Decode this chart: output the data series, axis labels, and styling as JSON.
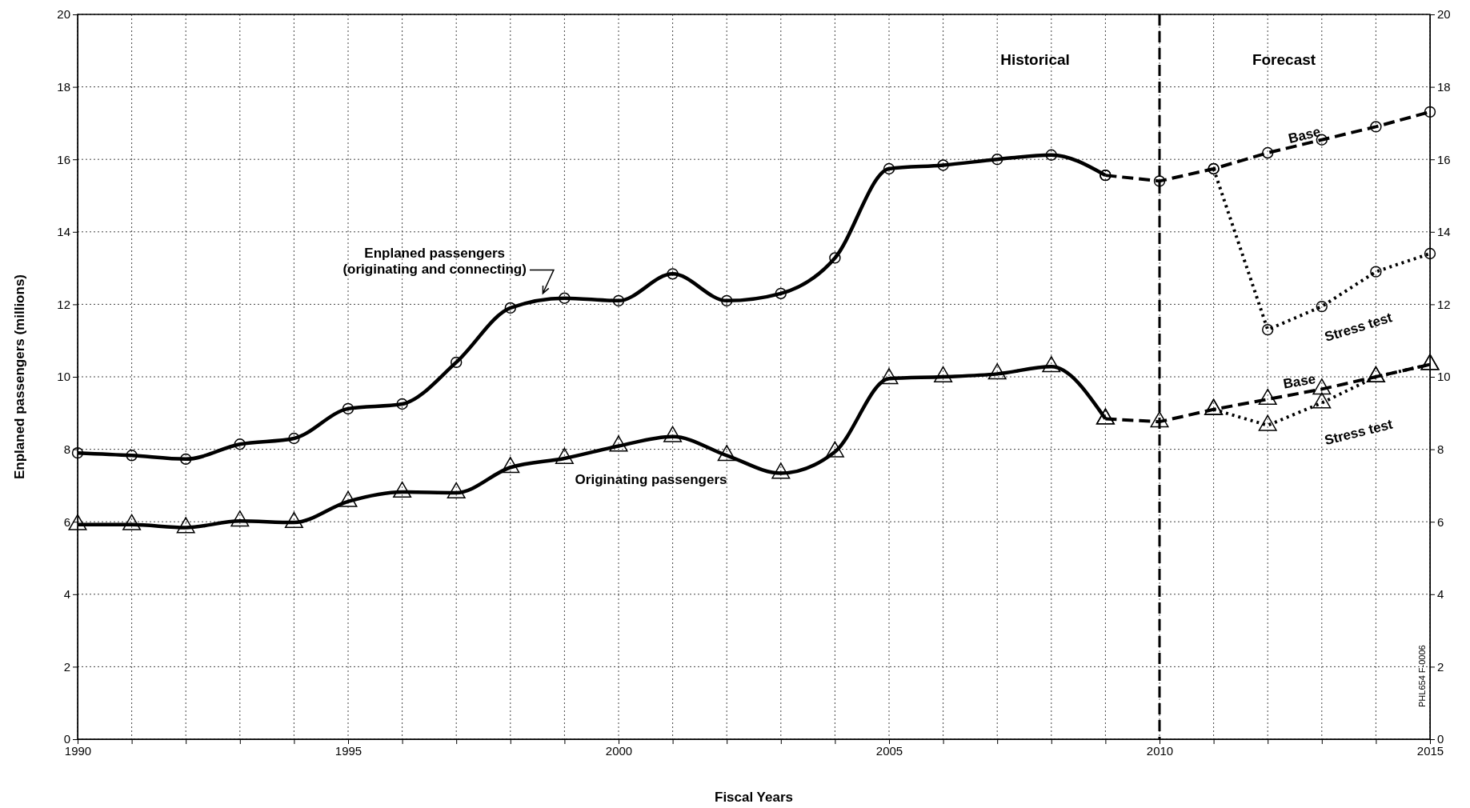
{
  "chart_data": {
    "type": "line",
    "xlabel": "Fiscal Years",
    "ylabel": "Enplaned passengers (millions)",
    "xlim": [
      1990,
      2015
    ],
    "xticks": [
      1990,
      {
        "value": 1991,
        "label": null
      },
      {
        "value": 1992,
        "label": null
      },
      {
        "value": 1993,
        "label": null
      },
      {
        "value": 1994,
        "label": null
      },
      1995,
      {
        "value": 1996,
        "label": null
      },
      {
        "value": 1997,
        "label": null
      },
      {
        "value": 1998,
        "label": null
      },
      {
        "value": 1999,
        "label": null
      },
      2000,
      {
        "value": 2001,
        "label": null
      },
      {
        "value": 2002,
        "label": null
      },
      {
        "value": 2003,
        "label": null
      },
      {
        "value": 2004,
        "label": null
      },
      2005,
      {
        "value": 2006,
        "label": null
      },
      {
        "value": 2007,
        "label": null
      },
      {
        "value": 2008,
        "label": null
      },
      {
        "value": 2009,
        "label": null
      },
      2010,
      {
        "value": 2011,
        "label": null
      },
      {
        "value": 2012,
        "label": null
      },
      {
        "value": 2013,
        "label": null
      },
      {
        "value": 2014,
        "label": null
      },
      2015
    ],
    "ylim": [
      0,
      20
    ],
    "yticks": [
      0,
      2,
      4,
      6,
      8,
      10,
      12,
      14,
      16,
      18,
      20
    ],
    "y2lim": [
      0,
      20
    ],
    "y2ticks": [
      0,
      2,
      4,
      6,
      8,
      10,
      12,
      14,
      16,
      18,
      20
    ],
    "grid": true,
    "series": [
      {
        "name": "Enplaned passengers\n(originating and connecting)",
        "color": "#000000",
        "marker": "circle",
        "line_style": "solid",
        "x": [
          1990,
          1991,
          1992,
          1993,
          1994,
          1995,
          1996,
          1997,
          1998,
          1999,
          2000,
          2001,
          2002,
          2003,
          2004,
          2005,
          2006,
          2007,
          2008,
          2009
        ],
        "values": [
          7.9,
          7.83,
          7.73,
          8.14,
          8.3,
          9.12,
          9.25,
          10.4,
          11.9,
          12.17,
          12.1,
          12.84,
          12.1,
          12.3,
          13.28,
          15.74,
          15.84,
          16.0,
          16.12,
          15.56
        ]
      },
      {
        "name": "Base",
        "color": "#000000",
        "marker": "circle",
        "line_style": "dashed",
        "x": [
          2009,
          2010,
          2011,
          2012,
          2013,
          2014,
          2015
        ],
        "values": [
          15.56,
          15.4,
          15.74,
          16.18,
          16.54,
          16.9,
          17.31
        ]
      },
      {
        "name": "Stress test",
        "color": "#000000",
        "marker": "circle",
        "line_style": "dotted",
        "x": [
          2011,
          2012,
          2013,
          2014,
          2015
        ],
        "values": [
          15.74,
          11.3,
          11.94,
          12.9,
          13.4
        ]
      },
      {
        "name": "Originating passengers",
        "color": "#000000",
        "marker": "triangle",
        "line_style": "solid",
        "x": [
          1990,
          1991,
          1992,
          1993,
          1994,
          1995,
          1996,
          1997,
          1998,
          1999,
          2000,
          2001,
          2002,
          2003,
          2004,
          2005,
          2006,
          2007,
          2008,
          2009
        ],
        "values": [
          5.92,
          5.92,
          5.84,
          6.02,
          5.98,
          6.56,
          6.82,
          6.8,
          7.5,
          7.75,
          8.09,
          8.35,
          7.83,
          7.34,
          7.93,
          9.95,
          10.0,
          10.08,
          10.28,
          8.84
        ]
      },
      {
        "name": "Base",
        "color": "#000000",
        "marker": "triangle",
        "line_style": "dashed",
        "x": [
          2009,
          2010,
          2011,
          2012,
          2013,
          2014,
          2015
        ],
        "values": [
          8.84,
          8.76,
          9.1,
          9.38,
          9.66,
          10.0,
          10.34
        ]
      },
      {
        "name": "Stress test",
        "color": "#000000",
        "marker": "triangle",
        "line_style": "dotted",
        "x": [
          2011,
          2012,
          2013,
          2014,
          2015
        ],
        "values": [
          9.1,
          8.66,
          9.28,
          10.0,
          10.34
        ]
      }
    ],
    "ref_lines": [
      {
        "axis": "x",
        "value": 2010,
        "line_style": "dashed",
        "color": "#000000"
      }
    ],
    "annotations": [
      "Historical",
      "Forecast",
      "PHL654 F-0006"
    ]
  }
}
